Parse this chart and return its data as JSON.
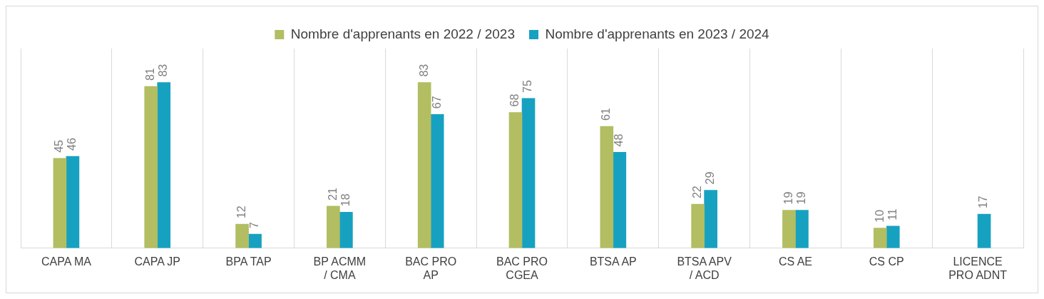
{
  "chart_data": {
    "type": "bar",
    "categories": [
      "CAPA MA",
      "CAPA JP",
      "BPA TAP",
      "BP ACMM / CMA",
      "BAC PRO AP",
      "BAC PRO CGEA",
      "BTSA AP",
      "BTSA APV / ACD",
      "CS AE",
      "CS CP",
      "LICENCE PRO ADNT"
    ],
    "series": [
      {
        "name": "Nombre d'apprenants en 2022 / 2023",
        "color": "#b3bd62",
        "values": [
          45,
          81,
          12,
          21,
          83,
          68,
          61,
          22,
          19,
          10,
          null
        ]
      },
      {
        "name": "Nombre d'apprenants en 2023 / 2024",
        "color": "#17a1c1",
        "values": [
          46,
          83,
          7,
          18,
          67,
          75,
          48,
          29,
          19,
          11,
          17
        ]
      }
    ],
    "ylim": [
      0,
      100
    ],
    "tick_labels": "x",
    "grid": "x",
    "legend": "top",
    "data_labels": true
  }
}
